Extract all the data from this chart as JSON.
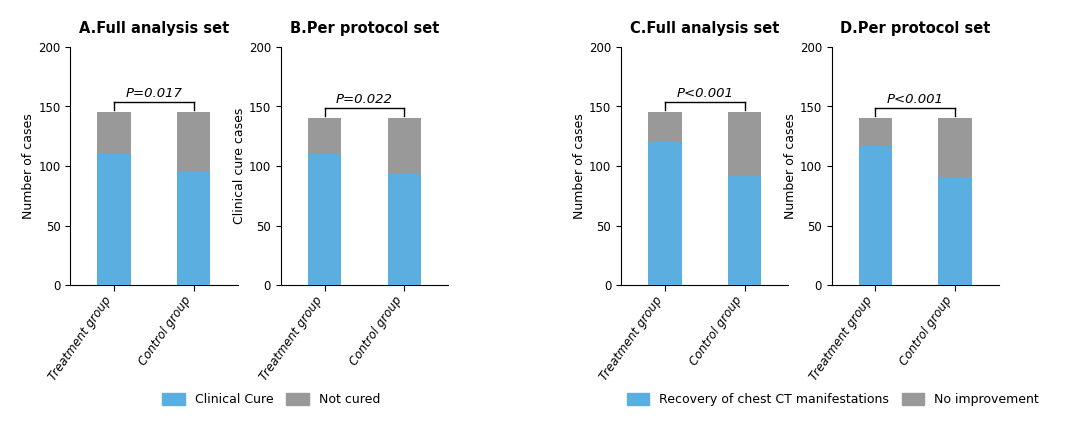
{
  "subplots": [
    {
      "title": "A.Full analysis set",
      "ylabel": "Number of cases",
      "p_text": "P=0.017",
      "blue_values": [
        110,
        95
      ],
      "gray_values": [
        35,
        50
      ],
      "legend_blue": "Clinical Cure",
      "legend_gray": "Not cured"
    },
    {
      "title": "B.Per protocol set",
      "ylabel": "Clinical cure cases",
      "p_text": "P=0.022",
      "blue_values": [
        110,
        93
      ],
      "gray_values": [
        30,
        47
      ],
      "legend_blue": "Clinical Cure",
      "legend_gray": "Not cured"
    },
    {
      "title": "C.Full analysis set",
      "ylabel": "Number of cases",
      "p_text": "P<0.001",
      "blue_values": [
        120,
        92
      ],
      "gray_values": [
        25,
        53
      ],
      "legend_blue": "Recovery of chest CT manifestations",
      "legend_gray": "No improvement"
    },
    {
      "title": "D.Per protocol set",
      "ylabel": "Number of cases",
      "p_text": "P<0.001",
      "blue_values": [
        117,
        91
      ],
      "gray_values": [
        23,
        49
      ],
      "legend_blue": "Recovery of chest CT manifestations",
      "legend_gray": "No improvement"
    }
  ],
  "categories": [
    "Treatment group",
    "Control group"
  ],
  "ylim": [
    0,
    200
  ],
  "yticks": [
    0,
    50,
    100,
    150,
    200
  ],
  "blue_color": "#5aaee0",
  "gray_color": "#999999",
  "bar_width": 0.42,
  "title_fontsize": 10.5,
  "axis_label_fontsize": 9,
  "tick_fontsize": 8.5,
  "legend_fontsize": 9,
  "p_fontsize": 9.5,
  "background_color": "#ffffff"
}
